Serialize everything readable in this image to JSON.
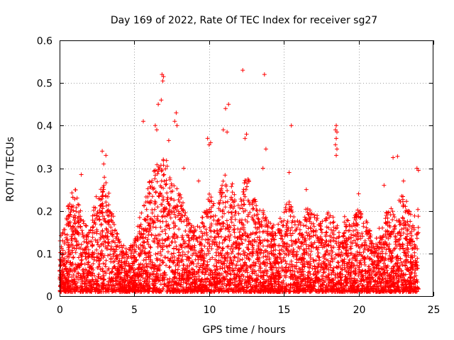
{
  "chart_data": {
    "type": "scatter",
    "title": "Day 169 of 2022, Rate Of TEC Index for receiver sg27",
    "xlabel": "GPS time / hours",
    "ylabel": "ROTI / TECUs",
    "xlim": [
      0,
      25
    ],
    "ylim": [
      0,
      0.6
    ],
    "xticks": [
      0,
      5,
      10,
      15,
      20,
      25
    ],
    "yticks": [
      0,
      0.1,
      0.2,
      0.3,
      0.4,
      0.5,
      0.6
    ],
    "xtick_labels": [
      "0",
      "5",
      "10",
      "15",
      "20",
      "25"
    ],
    "ytick_labels": [
      "0",
      "0.1",
      "0.2",
      "0.3",
      "0.4",
      "0.5",
      "0.6"
    ],
    "grid": true,
    "marker": "plus",
    "color": "#ff0000",
    "outliers": [
      {
        "x": 6.85,
        "y": 0.52
      },
      {
        "x": 6.9,
        "y": 0.505
      },
      {
        "x": 6.95,
        "y": 0.515
      },
      {
        "x": 6.8,
        "y": 0.46
      },
      {
        "x": 6.6,
        "y": 0.45
      },
      {
        "x": 7.8,
        "y": 0.43
      },
      {
        "x": 7.7,
        "y": 0.41
      },
      {
        "x": 7.85,
        "y": 0.4
      },
      {
        "x": 5.6,
        "y": 0.41
      },
      {
        "x": 6.5,
        "y": 0.39
      },
      {
        "x": 6.4,
        "y": 0.4
      },
      {
        "x": 7.3,
        "y": 0.365
      },
      {
        "x": 11.3,
        "y": 0.45
      },
      {
        "x": 11.1,
        "y": 0.44
      },
      {
        "x": 10.95,
        "y": 0.39
      },
      {
        "x": 11.2,
        "y": 0.385
      },
      {
        "x": 12.25,
        "y": 0.53
      },
      {
        "x": 13.7,
        "y": 0.52
      },
      {
        "x": 12.5,
        "y": 0.38
      },
      {
        "x": 12.4,
        "y": 0.37
      },
      {
        "x": 13.8,
        "y": 0.345
      },
      {
        "x": 13.6,
        "y": 0.3
      },
      {
        "x": 15.5,
        "y": 0.4
      },
      {
        "x": 18.5,
        "y": 0.4
      },
      {
        "x": 18.45,
        "y": 0.39
      },
      {
        "x": 18.55,
        "y": 0.385
      },
      {
        "x": 18.5,
        "y": 0.37
      },
      {
        "x": 18.45,
        "y": 0.355
      },
      {
        "x": 18.55,
        "y": 0.345
      },
      {
        "x": 18.5,
        "y": 0.33
      },
      {
        "x": 2.85,
        "y": 0.34
      },
      {
        "x": 3.1,
        "y": 0.33
      },
      {
        "x": 2.95,
        "y": 0.31
      },
      {
        "x": 1.45,
        "y": 0.285
      },
      {
        "x": 9.9,
        "y": 0.37
      },
      {
        "x": 10.1,
        "y": 0.36
      },
      {
        "x": 10.0,
        "y": 0.355
      },
      {
        "x": 15.35,
        "y": 0.29
      },
      {
        "x": 22.3,
        "y": 0.325
      },
      {
        "x": 22.6,
        "y": 0.328
      },
      {
        "x": 23.9,
        "y": 0.3
      },
      {
        "x": 24.0,
        "y": 0.295
      },
      {
        "x": 8.3,
        "y": 0.3
      },
      {
        "x": 9.3,
        "y": 0.27
      },
      {
        "x": 16.5,
        "y": 0.25
      },
      {
        "x": 20.0,
        "y": 0.24
      },
      {
        "x": 21.7,
        "y": 0.26
      },
      {
        "x": 23.0,
        "y": 0.27
      }
    ],
    "envelope": [
      {
        "x": 0.0,
        "y": 0.12
      },
      {
        "x": 0.5,
        "y": 0.2
      },
      {
        "x": 1.0,
        "y": 0.25
      },
      {
        "x": 1.5,
        "y": 0.18
      },
      {
        "x": 2.0,
        "y": 0.15
      },
      {
        "x": 2.5,
        "y": 0.24
      },
      {
        "x": 3.0,
        "y": 0.28
      },
      {
        "x": 3.5,
        "y": 0.2
      },
      {
        "x": 4.0,
        "y": 0.12
      },
      {
        "x": 4.5,
        "y": 0.1
      },
      {
        "x": 5.0,
        "y": 0.12
      },
      {
        "x": 5.5,
        "y": 0.2
      },
      {
        "x": 6.0,
        "y": 0.26
      },
      {
        "x": 6.5,
        "y": 0.3
      },
      {
        "x": 7.0,
        "y": 0.32
      },
      {
        "x": 7.5,
        "y": 0.28
      },
      {
        "x": 8.0,
        "y": 0.24
      },
      {
        "x": 8.5,
        "y": 0.18
      },
      {
        "x": 9.0,
        "y": 0.16
      },
      {
        "x": 9.5,
        "y": 0.17
      },
      {
        "x": 10.0,
        "y": 0.24
      },
      {
        "x": 10.5,
        "y": 0.2
      },
      {
        "x": 11.0,
        "y": 0.28
      },
      {
        "x": 11.5,
        "y": 0.26
      },
      {
        "x": 12.0,
        "y": 0.2
      },
      {
        "x": 12.5,
        "y": 0.28
      },
      {
        "x": 13.0,
        "y": 0.22
      },
      {
        "x": 13.5,
        "y": 0.2
      },
      {
        "x": 14.0,
        "y": 0.17
      },
      {
        "x": 14.5,
        "y": 0.15
      },
      {
        "x": 15.0,
        "y": 0.2
      },
      {
        "x": 15.5,
        "y": 0.22
      },
      {
        "x": 16.0,
        "y": 0.16
      },
      {
        "x": 16.5,
        "y": 0.2
      },
      {
        "x": 17.0,
        "y": 0.2
      },
      {
        "x": 17.5,
        "y": 0.16
      },
      {
        "x": 18.0,
        "y": 0.2
      },
      {
        "x": 18.5,
        "y": 0.16
      },
      {
        "x": 19.0,
        "y": 0.18
      },
      {
        "x": 19.5,
        "y": 0.16
      },
      {
        "x": 20.0,
        "y": 0.2
      },
      {
        "x": 20.5,
        "y": 0.17
      },
      {
        "x": 21.0,
        "y": 0.12
      },
      {
        "x": 21.5,
        "y": 0.16
      },
      {
        "x": 22.0,
        "y": 0.2
      },
      {
        "x": 22.5,
        "y": 0.2
      },
      {
        "x": 23.0,
        "y": 0.24
      },
      {
        "x": 23.5,
        "y": 0.18
      },
      {
        "x": 24.0,
        "y": 0.2
      }
    ]
  }
}
